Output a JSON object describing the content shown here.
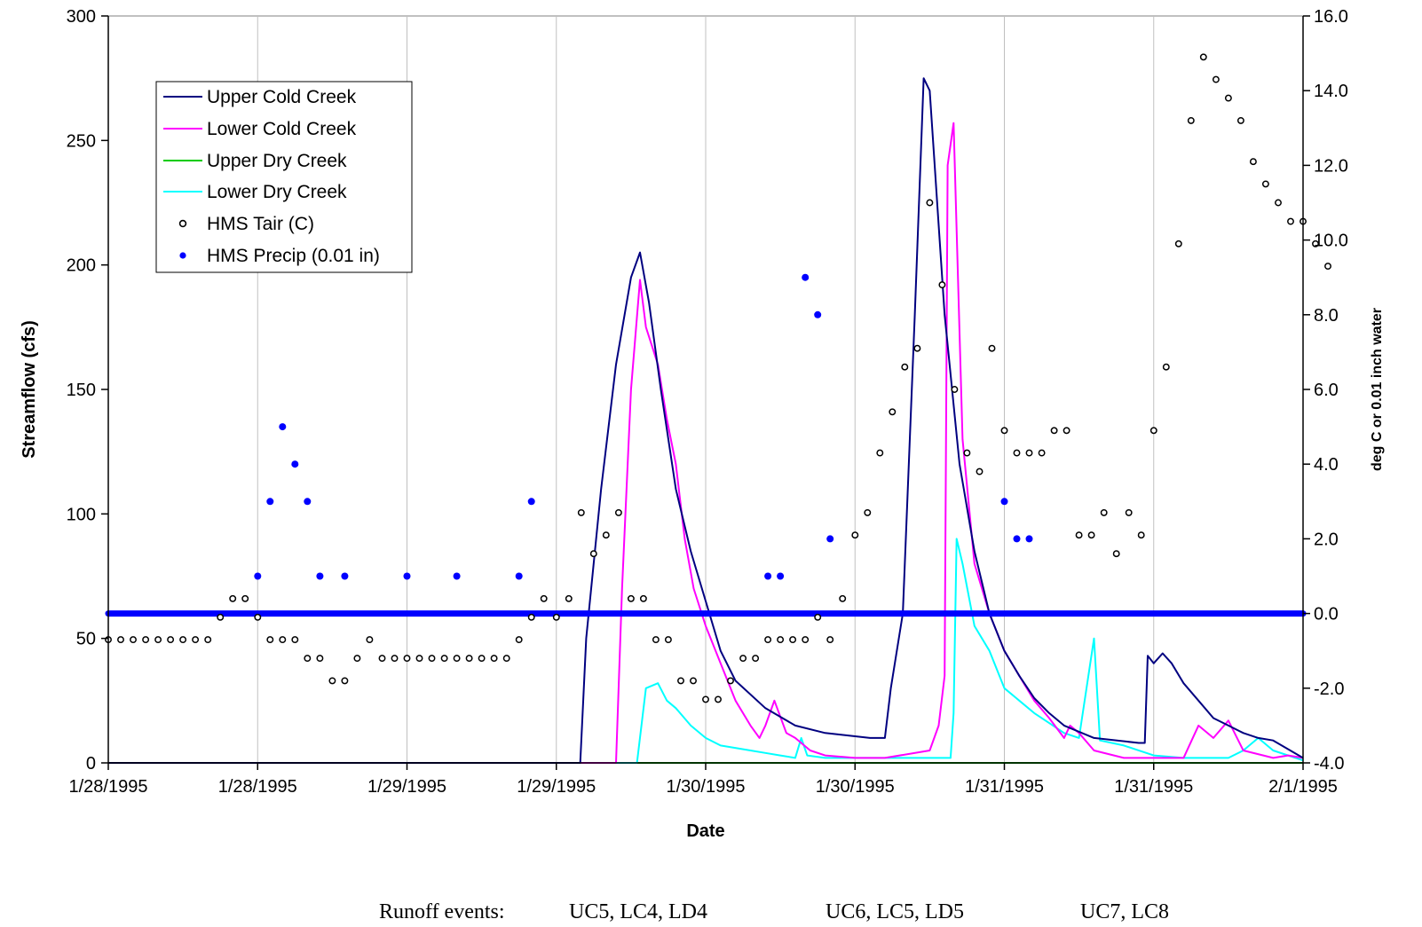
{
  "chart_data": {
    "type": "line",
    "xlabel": "Date",
    "ylabel": "Streamflow (cfs)",
    "y2label": "deg C or 0.01 inch water",
    "x_tick_labels": [
      "1/28/1995",
      "1/28/1995",
      "1/29/1995",
      "1/29/1995",
      "1/30/1995",
      "1/30/1995",
      "1/31/1995",
      "1/31/1995",
      "2/1/1995"
    ],
    "xlim_days": [
      0,
      4
    ],
    "ylim": [
      0,
      300
    ],
    "y_ticks": [
      0,
      50,
      100,
      150,
      200,
      250,
      300
    ],
    "y2lim": [
      -4,
      16
    ],
    "y2_ticks": [
      "-4.0",
      "-2.0",
      "0.0",
      "2.0",
      "4.0",
      "6.0",
      "8.0",
      "10.0",
      "12.0",
      "14.0",
      "16.0"
    ],
    "grid": "vertical",
    "legend_position": "upper-left",
    "colors": {
      "upper_cold": "#000080",
      "lower_cold": "#ff00ff",
      "upper_dry": "#00cc00",
      "lower_dry": "#00ffff",
      "tair": "#000000",
      "precip": "#0000ff"
    },
    "series": [
      {
        "name": "Upper Cold Creek",
        "axis": "left",
        "points": [
          [
            0,
            0
          ],
          [
            1.58,
            0
          ],
          [
            1.6,
            50
          ],
          [
            1.65,
            110
          ],
          [
            1.7,
            160
          ],
          [
            1.75,
            195
          ],
          [
            1.78,
            205
          ],
          [
            1.81,
            185
          ],
          [
            1.85,
            150
          ],
          [
            1.9,
            110
          ],
          [
            1.95,
            85
          ],
          [
            2.0,
            65
          ],
          [
            2.05,
            45
          ],
          [
            2.1,
            33
          ],
          [
            2.2,
            22
          ],
          [
            2.3,
            15
          ],
          [
            2.4,
            12
          ],
          [
            2.55,
            10
          ],
          [
            2.6,
            10
          ],
          [
            2.62,
            30
          ],
          [
            2.66,
            60
          ],
          [
            2.7,
            180
          ],
          [
            2.73,
            275
          ],
          [
            2.75,
            270
          ],
          [
            2.8,
            180
          ],
          [
            2.85,
            120
          ],
          [
            2.9,
            85
          ],
          [
            2.95,
            60
          ],
          [
            3.0,
            45
          ],
          [
            3.05,
            35
          ],
          [
            3.1,
            26
          ],
          [
            3.15,
            20
          ],
          [
            3.2,
            15
          ],
          [
            3.3,
            10
          ],
          [
            3.45,
            8
          ],
          [
            3.47,
            8
          ],
          [
            3.48,
            43
          ],
          [
            3.5,
            40
          ],
          [
            3.53,
            44
          ],
          [
            3.56,
            40
          ],
          [
            3.6,
            32
          ],
          [
            3.65,
            25
          ],
          [
            3.7,
            18
          ],
          [
            3.75,
            15
          ],
          [
            3.8,
            12
          ],
          [
            3.85,
            10
          ],
          [
            3.9,
            9
          ],
          [
            4.0,
            2
          ]
        ]
      },
      {
        "name": "Lower Cold Creek",
        "axis": "left",
        "points": [
          [
            0,
            0
          ],
          [
            1.7,
            0
          ],
          [
            1.72,
            70
          ],
          [
            1.75,
            150
          ],
          [
            1.78,
            194
          ],
          [
            1.8,
            175
          ],
          [
            1.84,
            160
          ],
          [
            1.87,
            138
          ],
          [
            1.9,
            120
          ],
          [
            1.93,
            90
          ],
          [
            1.96,
            70
          ],
          [
            2.0,
            55
          ],
          [
            2.05,
            40
          ],
          [
            2.1,
            25
          ],
          [
            2.15,
            15
          ],
          [
            2.18,
            10
          ],
          [
            2.2,
            15
          ],
          [
            2.23,
            25
          ],
          [
            2.27,
            12
          ],
          [
            2.3,
            10
          ],
          [
            2.35,
            5
          ],
          [
            2.4,
            3
          ],
          [
            2.5,
            2
          ],
          [
            2.6,
            2
          ],
          [
            2.75,
            5
          ],
          [
            2.78,
            15
          ],
          [
            2.8,
            35
          ],
          [
            2.81,
            240
          ],
          [
            2.83,
            257
          ],
          [
            2.86,
            130
          ],
          [
            2.9,
            80
          ],
          [
            2.95,
            60
          ],
          [
            3.0,
            45
          ],
          [
            3.05,
            35
          ],
          [
            3.1,
            25
          ],
          [
            3.15,
            18
          ],
          [
            3.2,
            10
          ],
          [
            3.22,
            15
          ],
          [
            3.25,
            12
          ],
          [
            3.3,
            5
          ],
          [
            3.4,
            2
          ],
          [
            3.5,
            2
          ],
          [
            3.6,
            2
          ],
          [
            3.65,
            15
          ],
          [
            3.7,
            10
          ],
          [
            3.75,
            17
          ],
          [
            3.8,
            5
          ],
          [
            3.9,
            2
          ],
          [
            3.95,
            3
          ],
          [
            4.0,
            2
          ]
        ]
      },
      {
        "name": "Upper Dry Creek",
        "axis": "left",
        "points": [
          [
            0,
            0
          ],
          [
            4.0,
            0
          ]
        ]
      },
      {
        "name": "Lower Dry Creek",
        "axis": "left",
        "points": [
          [
            0,
            0
          ],
          [
            1.77,
            0
          ],
          [
            1.8,
            30
          ],
          [
            1.84,
            32
          ],
          [
            1.87,
            25
          ],
          [
            1.9,
            22
          ],
          [
            1.95,
            15
          ],
          [
            2.0,
            10
          ],
          [
            2.05,
            7
          ],
          [
            2.15,
            5
          ],
          [
            2.2,
            4
          ],
          [
            2.25,
            3
          ],
          [
            2.3,
            2
          ],
          [
            2.32,
            10
          ],
          [
            2.34,
            3
          ],
          [
            2.4,
            2
          ],
          [
            2.5,
            2
          ],
          [
            2.6,
            2
          ],
          [
            2.74,
            2
          ],
          [
            2.82,
            2
          ],
          [
            2.83,
            20
          ],
          [
            2.84,
            90
          ],
          [
            2.86,
            80
          ],
          [
            2.9,
            55
          ],
          [
            2.95,
            45
          ],
          [
            3.0,
            30
          ],
          [
            3.05,
            25
          ],
          [
            3.1,
            20
          ],
          [
            3.15,
            16
          ],
          [
            3.2,
            12
          ],
          [
            3.25,
            10
          ],
          [
            3.3,
            50
          ],
          [
            3.32,
            9
          ],
          [
            3.4,
            7
          ],
          [
            3.5,
            3
          ],
          [
            3.6,
            2
          ],
          [
            3.75,
            2
          ],
          [
            3.8,
            5
          ],
          [
            3.85,
            10
          ],
          [
            3.9,
            5
          ],
          [
            4.0,
            1
          ]
        ]
      },
      {
        "name": "HMS Tair (C)",
        "axis": "right",
        "marker": "open-circle",
        "points": [
          [
            0.0,
            -0.7
          ],
          [
            0.04167,
            -0.7
          ],
          [
            0.08333,
            -0.7
          ],
          [
            0.125,
            -0.7
          ],
          [
            0.16667,
            -0.7
          ],
          [
            0.20833,
            -0.7
          ],
          [
            0.25,
            -0.7
          ],
          [
            0.29167,
            -0.7
          ],
          [
            0.33333,
            -0.7
          ],
          [
            0.375,
            -0.1
          ],
          [
            0.41667,
            0.4
          ],
          [
            0.45833,
            0.4
          ],
          [
            0.5,
            -0.1
          ],
          [
            0.54167,
            -0.7
          ],
          [
            0.58333,
            -0.7
          ],
          [
            0.625,
            -0.7
          ],
          [
            0.66667,
            -1.2
          ],
          [
            0.70833,
            -1.2
          ],
          [
            0.75,
            -1.8
          ],
          [
            0.79167,
            -1.8
          ],
          [
            0.83333,
            -1.2
          ],
          [
            0.875,
            -0.7
          ],
          [
            0.91667,
            -1.2
          ],
          [
            0.95833,
            -1.2
          ],
          [
            1.0,
            -1.2
          ],
          [
            1.04167,
            -1.2
          ],
          [
            1.08333,
            -1.2
          ],
          [
            1.125,
            -1.2
          ],
          [
            1.16667,
            -1.2
          ],
          [
            1.20833,
            -1.2
          ],
          [
            1.25,
            -1.2
          ],
          [
            1.29167,
            -1.2
          ],
          [
            1.33333,
            -1.2
          ],
          [
            1.375,
            -0.7
          ],
          [
            1.41667,
            -0.1
          ],
          [
            1.45833,
            0.4
          ],
          [
            1.5,
            -0.1
          ],
          [
            1.54167,
            0.4
          ],
          [
            1.58333,
            2.7
          ],
          [
            1.625,
            1.6
          ],
          [
            1.66667,
            2.1
          ],
          [
            1.70833,
            2.7
          ],
          [
            1.75,
            0.4
          ],
          [
            1.79167,
            0.4
          ],
          [
            1.83333,
            -0.7
          ],
          [
            1.875,
            -0.7
          ],
          [
            1.91667,
            -1.8
          ],
          [
            1.95833,
            -1.8
          ],
          [
            2.0,
            -2.3
          ],
          [
            2.04167,
            -2.3
          ],
          [
            2.08333,
            -1.8
          ],
          [
            2.125,
            -1.2
          ],
          [
            2.16667,
            -1.2
          ],
          [
            2.20833,
            -0.7
          ],
          [
            2.25,
            -0.7
          ],
          [
            2.29167,
            -0.7
          ],
          [
            2.33333,
            -0.7
          ],
          [
            2.375,
            -0.1
          ],
          [
            2.41667,
            -0.7
          ],
          [
            2.45833,
            0.4
          ],
          [
            2.5,
            2.1
          ],
          [
            2.54167,
            2.7
          ],
          [
            2.58333,
            4.3
          ],
          [
            2.625,
            5.4
          ],
          [
            2.66667,
            6.6
          ],
          [
            2.70833,
            7.1
          ],
          [
            2.75,
            11.0
          ],
          [
            2.79167,
            8.8
          ],
          [
            2.83333,
            6.0
          ],
          [
            2.875,
            4.3
          ],
          [
            2.91667,
            3.8
          ],
          [
            2.95833,
            7.1
          ],
          [
            3.0,
            4.9
          ],
          [
            3.04167,
            4.3
          ],
          [
            3.08333,
            4.3
          ],
          [
            3.125,
            4.3
          ],
          [
            3.16667,
            4.9
          ],
          [
            3.20833,
            4.9
          ],
          [
            3.25,
            2.1
          ],
          [
            3.29167,
            2.1
          ],
          [
            3.33333,
            2.7
          ],
          [
            3.375,
            1.6
          ],
          [
            3.41667,
            2.7
          ],
          [
            3.45833,
            2.1
          ],
          [
            3.5,
            4.9
          ],
          [
            3.54167,
            6.6
          ],
          [
            3.58333,
            9.9
          ],
          [
            3.625,
            13.2
          ],
          [
            3.66667,
            14.9
          ],
          [
            3.70833,
            14.3
          ],
          [
            3.75,
            13.8
          ],
          [
            3.79167,
            13.2
          ],
          [
            3.83333,
            12.1
          ],
          [
            3.875,
            11.5
          ],
          [
            3.91667,
            11.0
          ],
          [
            3.95833,
            10.5
          ],
          [
            4.0,
            10.5
          ],
          [
            4.04167,
            9.9
          ],
          [
            4.08333,
            9.3
          ]
        ]
      },
      {
        "name": "HMS Precip (0.01 in)",
        "axis": "right",
        "marker": "filled-circle",
        "baseline": 0,
        "points": [
          [
            0.5,
            1
          ],
          [
            0.54167,
            3
          ],
          [
            0.58333,
            5
          ],
          [
            0.625,
            4
          ],
          [
            0.66667,
            3
          ],
          [
            0.70833,
            1
          ],
          [
            0.79167,
            1
          ],
          [
            1.0,
            1
          ],
          [
            1.16667,
            1
          ],
          [
            1.375,
            1
          ],
          [
            1.41667,
            3
          ],
          [
            2.20833,
            1
          ],
          [
            2.25,
            1
          ],
          [
            2.33333,
            9
          ],
          [
            2.375,
            8
          ],
          [
            2.41667,
            2
          ],
          [
            3.0,
            3
          ],
          [
            3.04167,
            2
          ],
          [
            3.08333,
            2
          ]
        ]
      }
    ]
  },
  "footer": {
    "label": "Runoff events:",
    "events": [
      "UC5, LC4, LD4",
      "UC6, LC5, LD5",
      "UC7, LC8"
    ]
  }
}
